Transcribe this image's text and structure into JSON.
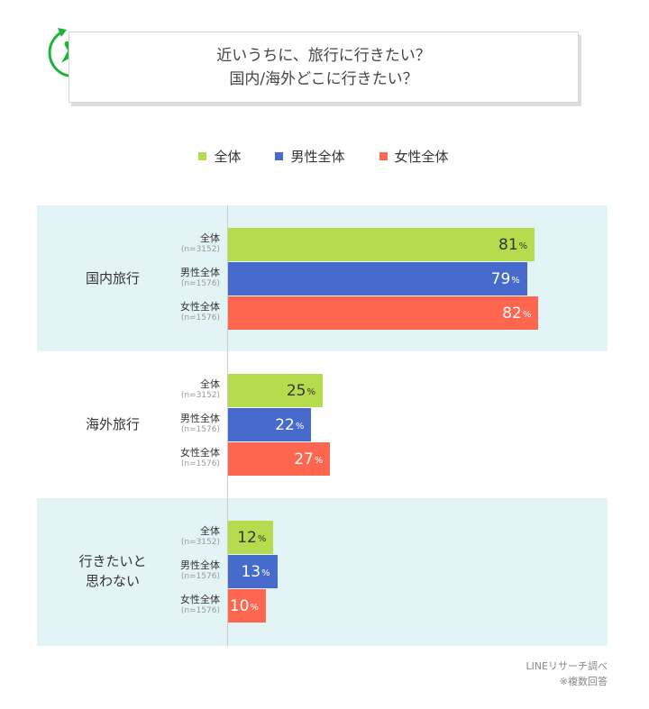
{
  "title": {
    "line1": "近いうちに、旅行に行きたい？",
    "line2": "国内/海外どこに行きたい？",
    "icon": "airplane-icon",
    "icon_color": "#1db33a"
  },
  "legend": [
    {
      "label": "全体",
      "color": "#b5dc4c"
    },
    {
      "label": "男性全体",
      "color": "#476bcc"
    },
    {
      "label": "女性全体",
      "color": "#ff6650"
    }
  ],
  "chart_data": {
    "type": "bar",
    "orientation": "horizontal",
    "unit": "%",
    "xlim": [
      0,
      100
    ],
    "categories": [
      "国内旅行",
      "海外旅行",
      "行きたいと\n思わない"
    ],
    "subgroups": [
      {
        "label": "全体",
        "n": "(n=3152)"
      },
      {
        "label": "男性全体",
        "n": "(n=1576)"
      },
      {
        "label": "女性全体",
        "n": "(n=1576)"
      }
    ],
    "series": [
      {
        "name": "全体",
        "values": [
          81,
          25,
          12
        ]
      },
      {
        "name": "男性全体",
        "values": [
          79,
          22,
          13
        ]
      },
      {
        "name": "女性全体",
        "values": [
          82,
          27,
          10
        ]
      }
    ],
    "band_colors": [
      "#e3f4f6",
      "#ffffff",
      "#e3f4f6"
    ]
  },
  "credit": {
    "source": "LINEリサーチ調べ",
    "note": "※複数回答"
  }
}
